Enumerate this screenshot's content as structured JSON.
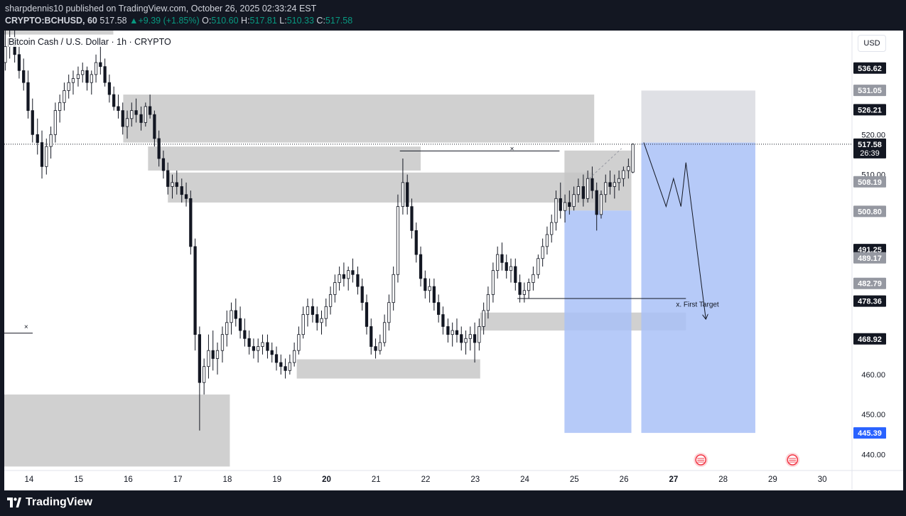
{
  "header": {
    "published_line": "sharpdennis10 published on TradingView.com, October 26, 2025 02:33:24 EST",
    "symbol": "CRYPTO:BCHUSD, 60",
    "last": "517.58",
    "change": "+9.39 (+1.85%)",
    "o_label": "O:",
    "o_value": "510.60",
    "h_label": "H:",
    "h_value": "517.81",
    "l_label": "L:",
    "l_value": "510.33",
    "c_label": "C:",
    "c_value": "517.58",
    "change_arrow": "▲"
  },
  "chart_title": "Bitcoin Cash / U.S. Dollar · 1h · CRYPTO",
  "currency_button": "USD",
  "footer": {
    "brand": "TradingView"
  },
  "colors": {
    "up": "#089981",
    "zone_gray": "#c4c4c4",
    "zone_blue": "#a9c1f7",
    "zone_lightgray": "#dcdde2",
    "price_label_dark": "#131722",
    "price_label_gray": "#9598a1",
    "price_label_red": "#f23645",
    "price_label_blue": "#2962ff"
  },
  "chart_data": {
    "type": "candlestick",
    "symbol": "BCHUSD",
    "interval": "1h",
    "ylim": [
      436,
      546
    ],
    "xlim": [
      13.5,
      30.6
    ],
    "x_ticks": [
      {
        "x": 14,
        "label": "14",
        "bold": false
      },
      {
        "x": 15,
        "label": "15",
        "bold": false
      },
      {
        "x": 16,
        "label": "16",
        "bold": false
      },
      {
        "x": 17,
        "label": "17",
        "bold": false
      },
      {
        "x": 18,
        "label": "18",
        "bold": false
      },
      {
        "x": 19,
        "label": "19",
        "bold": false
      },
      {
        "x": 20,
        "label": "20",
        "bold": true
      },
      {
        "x": 21,
        "label": "21",
        "bold": false
      },
      {
        "x": 22,
        "label": "22",
        "bold": false
      },
      {
        "x": 23,
        "label": "23",
        "bold": false
      },
      {
        "x": 24,
        "label": "24",
        "bold": false
      },
      {
        "x": 25,
        "label": "25",
        "bold": false
      },
      {
        "x": 26,
        "label": "26",
        "bold": false
      },
      {
        "x": 27,
        "label": "27",
        "bold": true
      },
      {
        "x": 28,
        "label": "28",
        "bold": false
      },
      {
        "x": 29,
        "label": "29",
        "bold": false
      },
      {
        "x": 30,
        "label": "30",
        "bold": false
      }
    ],
    "y_ticks": [
      {
        "y": 440,
        "label": "440.00"
      },
      {
        "y": 450,
        "label": "450.00"
      },
      {
        "y": 460,
        "label": "460.00"
      },
      {
        "y": 510,
        "label": "510.00"
      },
      {
        "y": 520,
        "label": "520.00"
      }
    ],
    "price_labels": [
      {
        "y": 536.62,
        "label": "536.62",
        "style": "dark"
      },
      {
        "y": 531.05,
        "label": "531.05",
        "style": "gray"
      },
      {
        "y": 526.21,
        "label": "526.21",
        "style": "dark"
      },
      {
        "y": 517.58,
        "label": "517.58",
        "sub": "26:39",
        "style": "dark"
      },
      {
        "y": 508.19,
        "label": "508.19",
        "style": "gray"
      },
      {
        "y": 500.8,
        "label": "500.80",
        "style": "gray"
      },
      {
        "y": 491.25,
        "label": "491.25",
        "style": "dark"
      },
      {
        "y": 489.17,
        "label": "489.17",
        "style": "gray"
      },
      {
        "y": 482.79,
        "label": "482.79",
        "style": "gray"
      },
      {
        "y": 478.36,
        "label": "478.36",
        "style": "dark"
      },
      {
        "y": 468.92,
        "label": "468.92",
        "style": "dark"
      },
      {
        "y": 445.39,
        "label": "445.39",
        "style": "blue"
      }
    ],
    "current_price": 517.58,
    "zones": [
      {
        "x0": 13.5,
        "x1": 15.7,
        "y0": 545,
        "y1": 548,
        "kind": "gray"
      },
      {
        "x0": 15.9,
        "x1": 25.4,
        "y0": 518,
        "y1": 530,
        "kind": "gray"
      },
      {
        "x0": 16.4,
        "x1": 21.9,
        "y0": 511,
        "y1": 517,
        "kind": "gray"
      },
      {
        "x0": 16.8,
        "x1": 25.4,
        "y0": 503,
        "y1": 510.5,
        "kind": "gray"
      },
      {
        "x0": 13.5,
        "x1": 18.05,
        "y0": 437,
        "y1": 455,
        "kind": "gray"
      },
      {
        "x0": 19.4,
        "x1": 23.1,
        "y0": 459,
        "y1": 463.8,
        "kind": "gray"
      },
      {
        "x0": 23.1,
        "x1": 27.25,
        "y0": 471,
        "y1": 475.5,
        "kind": "gray"
      },
      {
        "x0": 24.8,
        "x1": 26.15,
        "y0": 501,
        "y1": 516,
        "kind": "gray"
      },
      {
        "x0": 26.35,
        "x1": 28.65,
        "y0": 518,
        "y1": 531,
        "kind": "lightgray"
      },
      {
        "x0": 24.8,
        "x1": 26.15,
        "y0": 445.4,
        "y1": 501,
        "kind": "blue"
      },
      {
        "x0": 26.35,
        "x1": 28.65,
        "y0": 445.4,
        "y1": 518,
        "kind": "blue"
      }
    ],
    "annotations": [
      {
        "text": "x. First Target",
        "x": 27.05,
        "y": 477
      },
      {
        "text": "×",
        "x": 23.7,
        "y": 515.9
      },
      {
        "text": "×",
        "x": 13.9,
        "y": 471.4
      }
    ],
    "candles": [
      [
        13.52,
        538.0,
        546.0,
        536.0,
        542.0
      ],
      [
        13.61,
        542.0,
        547.0,
        539.0,
        544.0
      ],
      [
        13.71,
        544.0,
        546.0,
        538.0,
        540.0
      ],
      [
        13.8,
        540.0,
        543.0,
        534.0,
        536.0
      ],
      [
        13.89,
        536.0,
        539.0,
        531.0,
        533.0
      ],
      [
        13.98,
        533.0,
        536.0,
        524.0,
        526.0
      ],
      [
        14.07,
        526.0,
        529.0,
        518.0,
        520.0
      ],
      [
        14.17,
        520.0,
        524.0,
        515.0,
        518.0
      ],
      [
        14.26,
        518.0,
        521.0,
        509.0,
        512.0
      ],
      [
        14.35,
        512.0,
        519.0,
        510.0,
        517.0
      ],
      [
        14.44,
        517.0,
        522.0,
        514.0,
        520.0
      ],
      [
        14.53,
        520.0,
        528.0,
        518.0,
        526.0
      ],
      [
        14.62,
        526.0,
        530.0,
        523.0,
        528.0
      ],
      [
        14.71,
        528.0,
        533.0,
        526.0,
        531.0
      ],
      [
        14.8,
        531.0,
        535.0,
        529.0,
        533.0
      ],
      [
        14.89,
        533.0,
        536.0,
        530.0,
        534.0
      ],
      [
        14.99,
        534.0,
        537.0,
        532.0,
        535.0
      ],
      [
        15.08,
        535.0,
        538.0,
        533.0,
        536.0
      ],
      [
        15.17,
        536.0,
        537.0,
        531.0,
        533.0
      ],
      [
        15.26,
        533.0,
        536.0,
        530.0,
        535.0
      ],
      [
        15.35,
        535.0,
        540.0,
        533.0,
        538.0
      ],
      [
        15.44,
        538.0,
        542.0,
        535.0,
        537.0
      ],
      [
        15.53,
        537.0,
        539.0,
        532.0,
        533.0
      ],
      [
        15.62,
        533.0,
        535.0,
        528.0,
        530.0
      ],
      [
        15.71,
        530.0,
        532.0,
        526.0,
        527.0
      ],
      [
        15.8,
        527.0,
        530.0,
        524.0,
        526.0
      ],
      [
        15.89,
        526.0,
        528.0,
        520.0,
        522.0
      ],
      [
        15.98,
        522.0,
        526.0,
        519.0,
        524.0
      ],
      [
        16.07,
        524.0,
        528.0,
        522.0,
        526.0
      ],
      [
        16.16,
        526.0,
        529.0,
        523.0,
        525.0
      ],
      [
        16.26,
        525.0,
        527.0,
        521.0,
        523.0
      ],
      [
        16.35,
        523.0,
        528.0,
        522.0,
        527.0
      ],
      [
        16.44,
        527.0,
        530.0,
        524.0,
        525.0
      ],
      [
        16.53,
        525.0,
        526.0,
        517.0,
        519.0
      ],
      [
        16.62,
        519.0,
        521.0,
        512.0,
        514.0
      ],
      [
        16.71,
        514.0,
        516.0,
        509.0,
        511.0
      ],
      [
        16.8,
        511.0,
        513.0,
        505.0,
        507.0
      ],
      [
        16.89,
        507.0,
        510.0,
        504.0,
        508.0
      ],
      [
        16.98,
        508.0,
        511.0,
        505.0,
        507.0
      ],
      [
        17.08,
        507.0,
        509.0,
        503.0,
        505.0
      ],
      [
        17.17,
        505.0,
        508.0,
        502.0,
        504.0
      ],
      [
        17.26,
        504.0,
        506.0,
        490.0,
        492.0
      ],
      [
        17.35,
        492.0,
        494.0,
        466.0,
        470.0
      ],
      [
        17.44,
        470.0,
        472.0,
        446.0,
        458.0
      ],
      [
        17.53,
        458.0,
        464.0,
        455.0,
        462.0
      ],
      [
        17.62,
        462.0,
        470.0,
        459.0,
        466.0
      ],
      [
        17.71,
        466.0,
        471.0,
        461.0,
        464.0
      ],
      [
        17.8,
        464.0,
        468.0,
        460.0,
        466.0
      ],
      [
        17.9,
        466.0,
        472.0,
        463.0,
        470.0
      ],
      [
        17.99,
        470.0,
        476.0,
        467.0,
        473.0
      ],
      [
        18.08,
        473.0,
        478.0,
        470.0,
        476.0
      ],
      [
        18.17,
        476.0,
        479.0,
        472.0,
        474.0
      ],
      [
        18.26,
        474.0,
        477.0,
        469.0,
        471.0
      ],
      [
        18.35,
        471.0,
        474.0,
        467.0,
        469.0
      ],
      [
        18.44,
        469.0,
        471.0,
        465.0,
        467.0
      ],
      [
        18.53,
        467.0,
        469.0,
        464.0,
        466.0
      ],
      [
        18.62,
        466.0,
        469.0,
        463.0,
        467.0
      ],
      [
        18.71,
        467.0,
        470.0,
        465.0,
        468.0
      ],
      [
        18.81,
        468.0,
        470.0,
        464.0,
        466.0
      ],
      [
        18.9,
        466.0,
        468.0,
        463.0,
        465.0
      ],
      [
        18.99,
        465.0,
        467.0,
        461.0,
        463.0
      ],
      [
        19.08,
        463.0,
        465.0,
        460.0,
        462.0
      ],
      [
        19.17,
        462.0,
        464.0,
        459.0,
        461.0
      ],
      [
        19.26,
        461.0,
        465.0,
        460.0,
        463.0
      ],
      [
        19.35,
        463.0,
        468.0,
        462.0,
        466.0
      ],
      [
        19.44,
        466.0,
        472.0,
        465.0,
        470.0
      ],
      [
        19.53,
        470.0,
        477.0,
        469.0,
        475.0
      ],
      [
        19.62,
        475.0,
        479.0,
        472.0,
        477.0
      ],
      [
        19.72,
        477.0,
        479.0,
        473.0,
        475.0
      ],
      [
        19.81,
        475.0,
        477.0,
        471.0,
        473.0
      ],
      [
        19.9,
        473.0,
        476.0,
        470.0,
        474.0
      ],
      [
        19.99,
        474.0,
        479.0,
        472.0,
        477.0
      ],
      [
        20.08,
        477.0,
        482.0,
        475.0,
        480.0
      ],
      [
        20.17,
        480.0,
        485.0,
        478.0,
        483.0
      ],
      [
        20.26,
        483.0,
        487.0,
        481.0,
        485.0
      ],
      [
        20.35,
        485.0,
        488.0,
        482.0,
        484.0
      ],
      [
        20.44,
        484.0,
        487.0,
        481.0,
        486.0
      ],
      [
        20.53,
        486.0,
        489.0,
        483.0,
        485.0
      ],
      [
        20.63,
        485.0,
        487.0,
        480.0,
        482.0
      ],
      [
        20.72,
        482.0,
        484.0,
        476.0,
        478.0
      ],
      [
        20.81,
        478.0,
        480.0,
        470.0,
        472.0
      ],
      [
        20.9,
        472.0,
        474.0,
        465.0,
        467.0
      ],
      [
        20.99,
        467.0,
        469.0,
        464.0,
        466.0
      ],
      [
        21.08,
        466.0,
        470.0,
        465.0,
        468.0
      ],
      [
        21.17,
        468.0,
        475.0,
        467.0,
        473.0
      ],
      [
        21.26,
        473.0,
        480.0,
        471.0,
        478.0
      ],
      [
        21.35,
        478.0,
        487.0,
        476.0,
        485.0
      ],
      [
        21.44,
        485.0,
        505.0,
        483.0,
        502.0
      ],
      [
        21.54,
        502.0,
        514.0,
        500.0,
        508.0
      ],
      [
        21.63,
        508.0,
        510.0,
        500.0,
        502.0
      ],
      [
        21.72,
        502.0,
        504.0,
        494.0,
        496.0
      ],
      [
        21.81,
        496.0,
        498.0,
        488.0,
        490.0
      ],
      [
        21.9,
        490.0,
        492.0,
        482.0,
        484.0
      ],
      [
        21.99,
        484.0,
        486.0,
        479.0,
        481.0
      ],
      [
        22.08,
        481.0,
        484.0,
        478.0,
        482.0
      ],
      [
        22.17,
        482.0,
        484.0,
        476.0,
        478.0
      ],
      [
        22.26,
        478.0,
        480.0,
        473.0,
        475.0
      ],
      [
        22.35,
        475.0,
        477.0,
        470.0,
        472.0
      ],
      [
        22.45,
        472.0,
        474.0,
        468.0,
        470.0
      ],
      [
        22.54,
        470.0,
        473.0,
        467.0,
        471.0
      ],
      [
        22.63,
        471.0,
        474.0,
        468.0,
        470.0
      ],
      [
        22.72,
        470.0,
        472.0,
        466.0,
        468.0
      ],
      [
        22.81,
        468.0,
        471.0,
        465.0,
        469.0
      ],
      [
        22.9,
        469.0,
        472.0,
        466.0,
        470.0
      ],
      [
        22.99,
        470.0,
        473.0,
        463.0,
        468.0
      ],
      [
        23.08,
        468.0,
        474.0,
        466.0,
        472.0
      ],
      [
        23.17,
        472.0,
        478.0,
        470.0,
        476.0
      ],
      [
        23.26,
        476.0,
        482.0,
        474.0,
        480.0
      ],
      [
        23.36,
        480.0,
        488.0,
        478.0,
        486.0
      ],
      [
        23.45,
        486.0,
        492.0,
        484.0,
        490.0
      ],
      [
        23.54,
        490.0,
        493.0,
        486.0,
        488.0
      ],
      [
        23.63,
        488.0,
        490.0,
        484.0,
        486.0
      ],
      [
        23.72,
        486.0,
        489.0,
        483.0,
        487.0
      ],
      [
        23.81,
        487.0,
        489.0,
        481.0,
        483.0
      ],
      [
        23.9,
        483.0,
        485.0,
        478.0,
        480.0
      ],
      [
        23.99,
        480.0,
        483.0,
        478.0,
        481.0
      ],
      [
        24.08,
        481.0,
        484.0,
        479.0,
        483.0
      ],
      [
        24.17,
        483.0,
        487.0,
        481.0,
        485.0
      ],
      [
        24.27,
        485.0,
        490.0,
        484.0,
        489.0
      ],
      [
        24.36,
        489.0,
        494.0,
        487.0,
        492.0
      ],
      [
        24.45,
        492.0,
        497.0,
        490.0,
        495.0
      ],
      [
        24.54,
        495.0,
        500.0,
        493.0,
        498.0
      ],
      [
        24.63,
        498.0,
        506.0,
        496.0,
        504.0
      ],
      [
        24.72,
        504.0,
        508.0,
        499.0,
        501.0
      ],
      [
        24.81,
        501.0,
        505.0,
        498.0,
        503.0
      ],
      [
        24.9,
        503.0,
        506.0,
        500.0,
        502.0
      ],
      [
        24.99,
        502.0,
        507.0,
        501.0,
        505.0
      ],
      [
        25.08,
        505.0,
        509.0,
        503.0,
        507.0
      ],
      [
        25.18,
        507.0,
        510.0,
        502.0,
        504.0
      ],
      [
        25.27,
        504.0,
        511.0,
        503.0,
        509.0
      ],
      [
        25.36,
        509.0,
        512.0,
        504.0,
        506.0
      ],
      [
        25.45,
        506.0,
        508.0,
        496.0,
        500.0
      ],
      [
        25.54,
        500.0,
        506.0,
        499.0,
        505.0
      ],
      [
        25.63,
        505.0,
        510.0,
        503.0,
        508.0
      ],
      [
        25.72,
        508.0,
        511.0,
        505.0,
        507.0
      ],
      [
        25.81,
        507.0,
        510.0,
        504.0,
        508.0
      ],
      [
        25.9,
        508.0,
        511.0,
        506.0,
        509.0
      ],
      [
        25.99,
        509.0,
        512.0,
        507.0,
        511.0
      ],
      [
        26.09,
        511.0,
        514.0,
        509.0,
        512.0
      ],
      [
        26.18,
        510.6,
        517.81,
        510.33,
        517.58
      ]
    ],
    "lines": [
      {
        "points": [
          [
            21.48,
            515.9
          ],
          [
            24.7,
            515.9
          ]
        ],
        "arrow": false
      },
      {
        "points": [
          [
            23.85,
            479.0
          ],
          [
            27.25,
            479.0
          ]
        ],
        "arrow": false
      },
      {
        "points": [
          [
            26.4,
            518.0
          ],
          [
            26.85,
            502.0
          ],
          [
            27.0,
            509.0
          ],
          [
            27.15,
            502.0
          ],
          [
            27.25,
            513.0
          ],
          [
            27.65,
            474.0
          ]
        ],
        "arrow": true
      },
      {
        "points": [
          [
            25.3,
            509.0
          ],
          [
            25.95,
            516.5
          ]
        ],
        "arrow": false,
        "dashed": true
      }
    ],
    "event_flags": [
      27.55,
      29.4
    ]
  }
}
